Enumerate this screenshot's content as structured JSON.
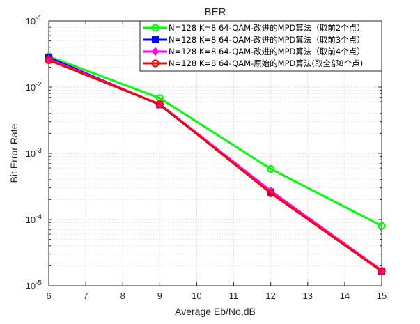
{
  "chart_data": {
    "type": "line",
    "title": "BER",
    "xlabel": "Average Eb/No,dB",
    "ylabel": "Bit Error Rate",
    "x_ticks": [
      6,
      7,
      8,
      9,
      10,
      11,
      12,
      13,
      14,
      15
    ],
    "xlim": [
      6,
      15
    ],
    "yscale": "log",
    "ylim": [
      1e-05,
      0.1
    ],
    "y_tick_exponents": [
      "-1",
      "-2",
      "-3",
      "-4",
      "-5"
    ],
    "y_tick_base": "10",
    "grid": true,
    "minor_grid": true,
    "legend_position": "top-right",
    "x": [
      6,
      9,
      12,
      15
    ],
    "series": [
      {
        "name": "N=128 K=8 64-QAM-改进的MPD算法（取前2个点）",
        "color": "#00ff00",
        "marker": "circle",
        "values": [
          0.029,
          0.0068,
          0.00058,
          8e-05
        ]
      },
      {
        "name": "N=128 K=8 64-QAM-改进的MPD算法（取前3个点）",
        "color": "#0000ff",
        "marker": "square",
        "values": [
          0.028,
          0.0054,
          0.00026,
          1.65e-05
        ]
      },
      {
        "name": "N=128 K=8 64-QAM-改进的MPD算法（取前4个点）",
        "color": "#ff00ff",
        "marker": "diamond",
        "values": [
          0.0265,
          0.0055,
          0.00027,
          1.7e-05
        ]
      },
      {
        "name": "N=128 K=8 64-QAM-原始的MPD算法(取全部8个点)",
        "color": "#ff0000",
        "marker": "circle",
        "values": [
          0.0255,
          0.0055,
          0.00025,
          1.65e-05
        ]
      }
    ]
  }
}
